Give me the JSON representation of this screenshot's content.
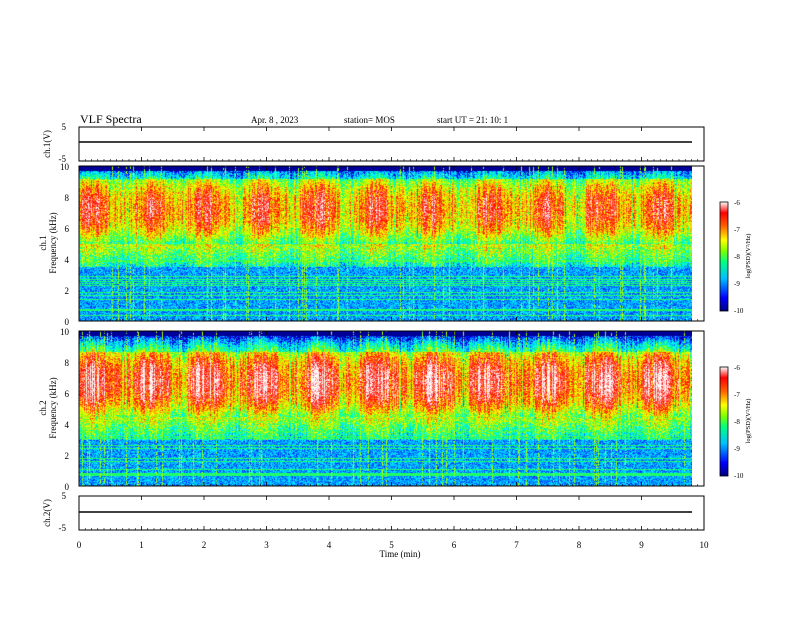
{
  "header": {
    "title": "VLF Spectra",
    "date": "Apr. 8 , 2023",
    "station": "station= MOS",
    "start_ut": "start UT = 21: 10: 1"
  },
  "chart_data": [
    {
      "type": "line",
      "panel": "waveform-1",
      "ylabel": "ch.1(V)",
      "ylim": [
        -5,
        5
      ],
      "y_ticks": [
        "5",
        "-5"
      ],
      "level": 0
    },
    {
      "type": "heatmap",
      "panel": "spectrogram-1",
      "ylabel_line1": "ch.1",
      "ylabel_line2": "Frequency (kHz)",
      "ylim": [
        0,
        10
      ],
      "y_ticks": [
        "0",
        "2",
        "4",
        "6",
        "8",
        "10"
      ],
      "intense_band_khz": [
        5,
        9.5
      ],
      "colorbar": {
        "label": "log(PSD)(V²/Hz)",
        "range": [
          -10,
          -6
        ],
        "ticks": [
          "-6",
          "-7",
          "-8",
          "-9",
          "-10"
        ]
      }
    },
    {
      "type": "heatmap",
      "panel": "spectrogram-2",
      "ylabel_line1": "ch.2",
      "ylabel_line2": "Frequency (kHz)",
      "ylim": [
        0,
        10
      ],
      "y_ticks": [
        "0",
        "2",
        "4",
        "6",
        "8",
        "10"
      ],
      "intense_band_khz": [
        4.5,
        9
      ],
      "colorbar": {
        "label": "log(PSD)(V²/Hz)",
        "range": [
          -10,
          -6
        ],
        "ticks": [
          "-6",
          "-7",
          "-8",
          "-9",
          "-10"
        ]
      }
    },
    {
      "type": "line",
      "panel": "waveform-2",
      "ylabel": "ch.2(V)",
      "ylim": [
        -5,
        5
      ],
      "y_ticks": [
        "5",
        "-5"
      ],
      "level": 0
    }
  ],
  "x_axis": {
    "label": "Time (min)",
    "range": [
      0,
      10
    ],
    "data_end": 9.83,
    "ticks": [
      "0",
      "1",
      "2",
      "3",
      "4",
      "5",
      "6",
      "7",
      "8",
      "9",
      "10"
    ]
  },
  "colors": {
    "colormap": [
      "#000080",
      "#0000ff",
      "#00a0ff",
      "#00ffff",
      "#00ff80",
      "#a0ff00",
      "#ffff00",
      "#ff8000",
      "#ff0000",
      "#ff9090",
      "#ffffff"
    ],
    "empty": "#000000",
    "axis": "#000000"
  }
}
